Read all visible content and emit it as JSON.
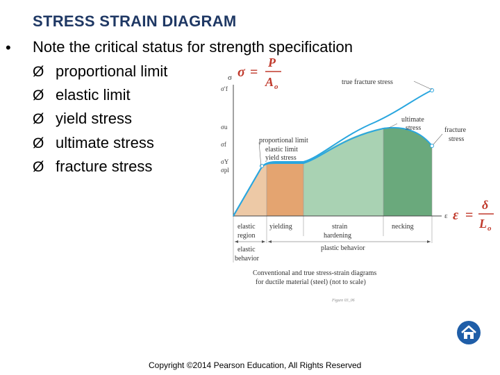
{
  "slide": {
    "title": "STRESS STRAIN DIAGRAM",
    "bullet": "•",
    "main_point": "Note the critical status for strength specification",
    "arrow_glyph": "Ø",
    "items": [
      "proportional limit",
      "elastic limit",
      "yield stress",
      "ultimate stress",
      "fracture stress"
    ],
    "copyright": "Copyright ©2014 Pearson Education, All Rights Reserved"
  },
  "figure": {
    "formula_stress": {
      "lhs": "σ",
      "eq": "=",
      "num": "P",
      "den": "A",
      "den_sub": "o"
    },
    "formula_strain": {
      "lhs": "ε",
      "eq": "=",
      "num": "δ",
      "den": "L",
      "den_sub": "o"
    },
    "y_axis_symbol": "σ",
    "x_axis_symbol": "ε",
    "y_ticks": {
      "sigma_f_true": "σ′f",
      "sigma_u": "σu",
      "sigma_f": "σf",
      "sigma_Y": "σY",
      "sigma_pl": "σpl"
    },
    "annotations": {
      "true_fracture_stress": "true fracture stress",
      "ultimate_stress": [
        "ultimate",
        "stress"
      ],
      "fracture_stress": [
        "fracture",
        "stress"
      ],
      "proportional_limit": "proportional limit",
      "elastic_limit": "elastic limit",
      "yield_stress": "yield stress"
    },
    "regions": {
      "elastic_region": [
        "elastic",
        "region"
      ],
      "yielding": "yielding",
      "strain_hardening": [
        "strain",
        "hardening"
      ],
      "necking": "necking",
      "elastic_behavior": [
        "elastic",
        "behavior"
      ],
      "plastic_behavior": "plastic behavior"
    },
    "caption": [
      "Conventional and true stress-strain diagrams",
      "for ductile material (steel) (not to scale)"
    ],
    "figure_id": "Figure 03_06",
    "colors": {
      "elastic": "#edc9a6",
      "yielding": "#e4a470",
      "hardening": "#a9d2b3",
      "necking": "#6aa97c",
      "curve": "#29a6df"
    }
  },
  "nav": {
    "home_icon": "home-icon"
  }
}
